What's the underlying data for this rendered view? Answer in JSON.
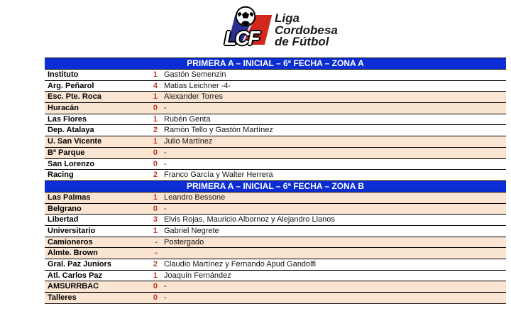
{
  "logo": {
    "acronym": "LCF",
    "name_lines": [
      "Liga",
      "Cordobesa",
      "de Fútbol"
    ],
    "colors": {
      "blue": "#2a3190",
      "red": "#d2271d"
    }
  },
  "colors": {
    "header_bg": "#0a2dd4",
    "header_text": "#ffffff",
    "row_alt_bg": "#fae5d3",
    "score_color": "#c0392b",
    "border": "#000000"
  },
  "sections": [
    {
      "title": "PRIMERA A – INICIAL – 6ª FECHA – ZONA A",
      "rows": [
        {
          "team": "Instituto",
          "score": "1",
          "scorers": "Gastón Semenzin"
        },
        {
          "team": "Arg. Peñarol",
          "score": "4",
          "scorers": "Matias Leichner -4-"
        },
        {
          "team": "Esc. Pte. Roca",
          "score": "1",
          "scorers": "Alexander Torres"
        },
        {
          "team": "Huracán",
          "score": "0",
          "scorers": "-"
        },
        {
          "team": "Las Flores",
          "score": "1",
          "scorers": "Rubén Genta"
        },
        {
          "team": "Dep. Atalaya",
          "score": "2",
          "scorers": "Ramón Tello y Gastón Martínez"
        },
        {
          "team": "U. San Vicente",
          "score": "1",
          "scorers": "Julio Martínez"
        },
        {
          "team": "Bº Parque",
          "score": "0",
          "scorers": "-"
        },
        {
          "team": "San Lorenzo",
          "score": "0",
          "scorers": "-"
        },
        {
          "team": "Racing",
          "score": "2",
          "scorers": "Franco García y Walter Herrera"
        }
      ]
    },
    {
      "title": "PRIMERA A – INICIAL – 6ª FECHA – ZONA B",
      "rows": [
        {
          "team": "Las Palmas",
          "score": "1",
          "scorers": "Leandro Bessone"
        },
        {
          "team": "Belgrano",
          "score": "0",
          "scorers": "-"
        },
        {
          "team": "Libertad",
          "score": "3",
          "scorers": "Elvis Rojas, Mauricio Albornoz y Alejandro Llanos"
        },
        {
          "team": "Universitario",
          "score": "1",
          "scorers": "Gabriel Negrete"
        },
        {
          "team": "Camioneros",
          "score": "-",
          "scorers": "Postergado"
        },
        {
          "team": "Almte. Brown",
          "score": "-",
          "scorers": ""
        },
        {
          "team": "Gral. Paz Juniors",
          "score": "2",
          "scorers": "Claudio Martínez y Fernando Apud Gandolfi"
        },
        {
          "team": "Atl. Carlos Paz",
          "score": "1",
          "scorers": "Joaquín Fernández"
        },
        {
          "team": "AMSURRBAC",
          "score": "0",
          "scorers": "-"
        },
        {
          "team": "Talleres",
          "score": "0",
          "scorers": "-"
        }
      ]
    }
  ]
}
